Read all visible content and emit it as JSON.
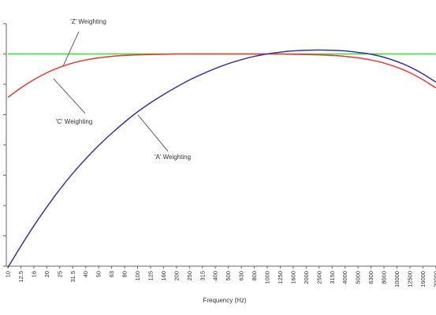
{
  "chart_data": {
    "type": "line",
    "title": "",
    "xlabel": "Frequency (Hz)",
    "ylabel": "",
    "x": [
      "10",
      "12.5",
      "16",
      "20",
      "25",
      "31.5",
      "40",
      "50",
      "63",
      "80",
      "100",
      "125",
      "160",
      "200",
      "250",
      "315",
      "400",
      "500",
      "630",
      "800",
      "1000",
      "1250",
      "1600",
      "2000",
      "2500",
      "3150",
      "4000",
      "5000",
      "6300",
      "8000",
      "10000",
      "12500",
      "16000",
      "20000"
    ],
    "xlim": [
      "10",
      "20000"
    ],
    "ylim": [
      -70,
      10
    ],
    "grid": false,
    "legend": "none",
    "series": [
      {
        "name": "'Z' Weighting",
        "color": "#33dd33",
        "values": [
          0,
          0,
          0,
          0,
          0,
          0,
          0,
          0,
          0,
          0,
          0,
          0,
          0,
          0,
          0,
          0,
          0,
          0,
          0,
          0,
          0,
          0,
          0,
          0,
          0,
          0,
          0,
          0,
          0,
          0,
          0,
          0,
          0,
          0
        ]
      },
      {
        "name": "'C' Weighting",
        "color": "#ee3333",
        "values": [
          -14.3,
          -11.2,
          -8.5,
          -6.2,
          -4.4,
          -3.0,
          -2.0,
          -1.3,
          -0.8,
          -0.5,
          -0.3,
          -0.2,
          -0.1,
          0,
          0,
          0,
          0,
          0,
          0,
          0,
          0,
          0,
          -0.1,
          -0.2,
          -0.3,
          -0.5,
          -0.8,
          -1.3,
          -2.0,
          -3.0,
          -4.4,
          -6.2,
          -8.5,
          -11.2
        ]
      },
      {
        "name": "'A' Weighting",
        "color": "#3333aa",
        "values": [
          -70.4,
          -63.4,
          -56.7,
          -50.5,
          -44.7,
          -39.4,
          -34.6,
          -30.2,
          -26.2,
          -22.5,
          -19.1,
          -16.1,
          -13.4,
          -10.9,
          -8.6,
          -6.6,
          -4.8,
          -3.2,
          -1.9,
          -0.8,
          0,
          0.6,
          1.0,
          1.2,
          1.3,
          1.2,
          1.0,
          0.5,
          -0.1,
          -1.1,
          -2.5,
          -4.3,
          -6.6,
          -9.3
        ]
      }
    ],
    "annotations": [
      {
        "text": "'Z' Weighting",
        "series": "'Z' Weighting"
      },
      {
        "text": "'C' Weighting",
        "series": "'C' Weighting"
      },
      {
        "text": "'A' Weighting",
        "series": "'A' Weighting"
      }
    ]
  }
}
